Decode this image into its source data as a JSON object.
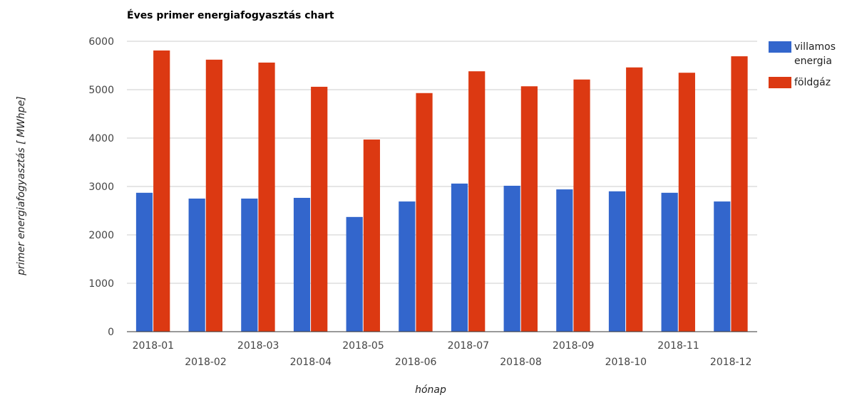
{
  "chart_data": {
    "type": "bar",
    "title": "Éves primer energiafogyasztás chart",
    "x_label": "hónap",
    "y_label": "primer energiafogyasztás [ MWhpe]",
    "categories": [
      "2018-01",
      "2018-02",
      "2018-03",
      "2018-04",
      "2018-05",
      "2018-06",
      "2018-07",
      "2018-08",
      "2018-09",
      "2018-10",
      "2018-11",
      "2018-12"
    ],
    "series": [
      {
        "name": "villamos energia",
        "color": "#3366cc",
        "values": [
          2870,
          2750,
          2750,
          2765,
          2370,
          2690,
          3060,
          3015,
          2940,
          2900,
          2870,
          2690
        ]
      },
      {
        "name": "földgáz",
        "color": "#dc3912",
        "values": [
          5810,
          5620,
          5560,
          5060,
          3970,
          4930,
          5380,
          5070,
          5210,
          5460,
          5350,
          5690
        ]
      }
    ],
    "ylim": [
      0,
      6000
    ],
    "yticks": [
      0,
      1000,
      2000,
      3000,
      4000,
      5000,
      6000
    ],
    "grid": true,
    "legend": "right"
  }
}
